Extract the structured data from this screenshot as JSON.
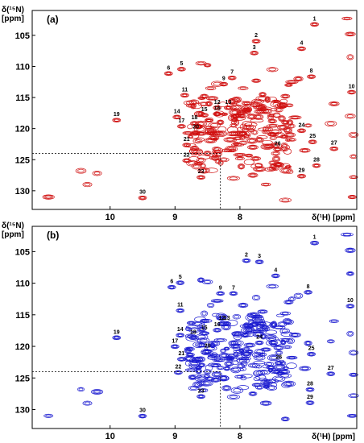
{
  "chart_data": [
    {
      "type": "scatter",
      "panel_label": "(a)",
      "xlabel": "δ(¹H) [ppm]",
      "ylabel": "δ(¹⁵N)\n[ppm]",
      "xlim": [
        11.2,
        6.2
      ],
      "ylim": [
        101,
        133
      ],
      "x_ticks": [
        10,
        9,
        8
      ],
      "y_ticks": [
        105,
        110,
        115,
        120,
        125,
        130
      ],
      "color": "#d01010",
      "highlight_region": {
        "x": [
          11.2,
          8.3
        ],
        "y": [
          124,
          133
        ]
      },
      "labeled_peaks": [
        {
          "label": "1",
          "x": 6.85,
          "y": 102.6
        },
        {
          "label": "2",
          "x": 7.75,
          "y": 105.3
        },
        {
          "label": "3",
          "x": 7.78,
          "y": 107.2
        },
        {
          "label": "4",
          "x": 7.05,
          "y": 106.5
        },
        {
          "label": "5",
          "x": 8.9,
          "y": 109.8
        },
        {
          "label": "6",
          "x": 9.1,
          "y": 110.5
        },
        {
          "label": "7",
          "x": 8.12,
          "y": 111.2
        },
        {
          "label": "8",
          "x": 6.9,
          "y": 111.0
        },
        {
          "label": "9",
          "x": 8.25,
          "y": 112.2
        },
        {
          "label": "10",
          "x": 6.28,
          "y": 113.5
        },
        {
          "label": "11",
          "x": 8.85,
          "y": 114.0
        },
        {
          "label": "12",
          "x": 8.35,
          "y": 116.0
        },
        {
          "label": "13",
          "x": 8.18,
          "y": 116.0
        },
        {
          "label": "14",
          "x": 8.97,
          "y": 117.5
        },
        {
          "label": "15",
          "x": 8.55,
          "y": 117.2
        },
        {
          "label": "16",
          "x": 8.35,
          "y": 117.0
        },
        {
          "label": "17",
          "x": 8.9,
          "y": 119.0
        },
        {
          "label": "18",
          "x": 8.7,
          "y": 118.5
        },
        {
          "label": "19",
          "x": 9.9,
          "y": 118.0
        },
        {
          "label": "20",
          "x": 8.68,
          "y": 120.0
        },
        {
          "label": "21",
          "x": 8.82,
          "y": 122.0
        },
        {
          "label": "22",
          "x": 8.82,
          "y": 124.5
        },
        {
          "label": "23",
          "x": 8.6,
          "y": 127.2
        },
        {
          "label": "24",
          "x": 7.05,
          "y": 119.7
        },
        {
          "label": "25",
          "x": 6.88,
          "y": 121.5
        },
        {
          "label": "26",
          "x": 7.42,
          "y": 122.7
        },
        {
          "label": "27",
          "x": 6.55,
          "y": 122.6
        },
        {
          "label": "28",
          "x": 6.82,
          "y": 125.3
        },
        {
          "label": "29",
          "x": 7.05,
          "y": 127.0
        },
        {
          "label": "30",
          "x": 9.5,
          "y": 130.5
        }
      ]
    },
    {
      "type": "scatter",
      "panel_label": "(b)",
      "xlabel": "δ(¹H) [ppm]",
      "ylabel": "δ(¹⁵N)\n[ppm]",
      "xlim": [
        11.2,
        6.2
      ],
      "ylim": [
        101,
        133
      ],
      "x_ticks": [
        10,
        9,
        8
      ],
      "y_ticks": [
        105,
        110,
        115,
        120,
        125,
        130
      ],
      "color": "#1a1ad0",
      "highlight_region": {
        "x": [
          11.2,
          8.3
        ],
        "y": [
          124,
          133
        ]
      },
      "labeled_peaks": [
        {
          "label": "1",
          "x": 6.85,
          "y": 103.0
        },
        {
          "label": "2",
          "x": 7.9,
          "y": 105.8
        },
        {
          "label": "3",
          "x": 7.7,
          "y": 106.0
        },
        {
          "label": "4",
          "x": 7.45,
          "y": 108.2
        },
        {
          "label": "5",
          "x": 8.92,
          "y": 109.3
        },
        {
          "label": "6",
          "x": 9.05,
          "y": 110.0
        },
        {
          "label": "7",
          "x": 8.1,
          "y": 111.0
        },
        {
          "label": "8",
          "x": 6.95,
          "y": 110.8
        },
        {
          "label": "9",
          "x": 8.3,
          "y": 111.0
        },
        {
          "label": "10",
          "x": 6.3,
          "y": 113.0
        },
        {
          "label": "11",
          "x": 8.92,
          "y": 113.7
        },
        {
          "label": "12",
          "x": 8.28,
          "y": 115.8
        },
        {
          "label": "13",
          "x": 8.2,
          "y": 115.8
        },
        {
          "label": "14",
          "x": 8.92,
          "y": 117.6
        },
        {
          "label": "15",
          "x": 8.55,
          "y": 117.3
        },
        {
          "label": "16",
          "x": 8.35,
          "y": 116.8
        },
        {
          "label": "17",
          "x": 9.0,
          "y": 119.4
        },
        {
          "label": "18",
          "x": 8.72,
          "y": 118.0
        },
        {
          "label": "19",
          "x": 9.9,
          "y": 118.0
        },
        {
          "label": "20",
          "x": 8.5,
          "y": 120.2
        },
        {
          "label": "21",
          "x": 8.9,
          "y": 121.4
        },
        {
          "label": "22",
          "x": 8.95,
          "y": 123.5
        },
        {
          "label": "23",
          "x": 8.6,
          "y": 127.3
        },
        {
          "label": "24",
          "x": 7.7,
          "y": 118.8
        },
        {
          "label": "25",
          "x": 6.9,
          "y": 120.6
        },
        {
          "label": "26",
          "x": 7.4,
          "y": 122.0
        },
        {
          "label": "27",
          "x": 6.6,
          "y": 123.7
        },
        {
          "label": "28",
          "x": 6.92,
          "y": 126.2
        },
        {
          "label": "29",
          "x": 6.92,
          "y": 128.3
        },
        {
          "label": "30",
          "x": 9.5,
          "y": 130.4
        }
      ]
    }
  ]
}
